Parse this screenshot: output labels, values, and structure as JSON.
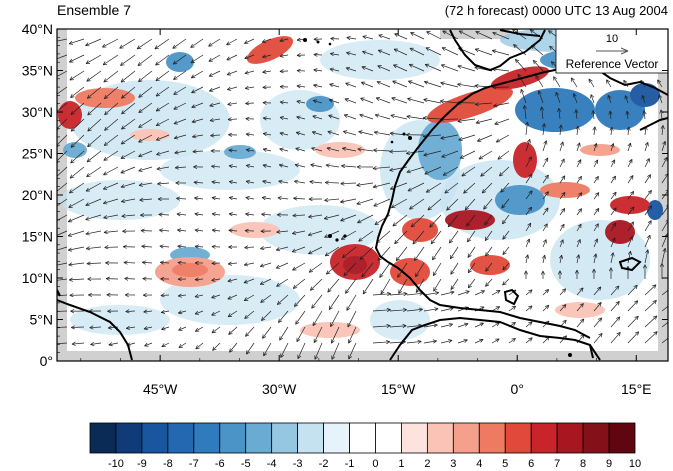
{
  "header": {
    "left_title": "Ensemble 7",
    "right_title": "(72 h forecast) 0000 UTC 13 Aug 2004"
  },
  "map": {
    "lat_ticks": [
      "40°N",
      "35°N",
      "30°N",
      "25°N",
      "20°N",
      "15°N",
      "10°N",
      "5°N",
      "0°"
    ],
    "lon_ticks": [
      "45°W",
      "30°W",
      "15°W",
      "0°",
      "15°E"
    ],
    "lat_range": [
      0,
      40
    ],
    "lon_range": [
      -58,
      19
    ],
    "missing_data_color": "#d0d0d0",
    "reference_vector": {
      "value": "10",
      "label": "Reference Vector"
    }
  },
  "colorbar": {
    "labels": [
      "-10",
      "-9",
      "-8",
      "-7",
      "-6",
      "-5",
      "-4",
      "-3",
      "-2",
      "-1",
      "0",
      "1",
      "2",
      "3",
      "4",
      "5",
      "6",
      "7",
      "8",
      "9",
      "10"
    ],
    "colors": [
      "#0b2b57",
      "#0f3c78",
      "#1a56a0",
      "#2368b0",
      "#2f7bbb",
      "#4a94c8",
      "#6aabd3",
      "#95c7e2",
      "#c5e2f1",
      "#e6f3fa",
      "#ffffff",
      "#ffffff",
      "#fde3de",
      "#fac3b6",
      "#f5a08c",
      "#ef7a62",
      "#e14a3a",
      "#c9242a",
      "#a81620",
      "#84101a",
      "#5f0610"
    ]
  }
}
